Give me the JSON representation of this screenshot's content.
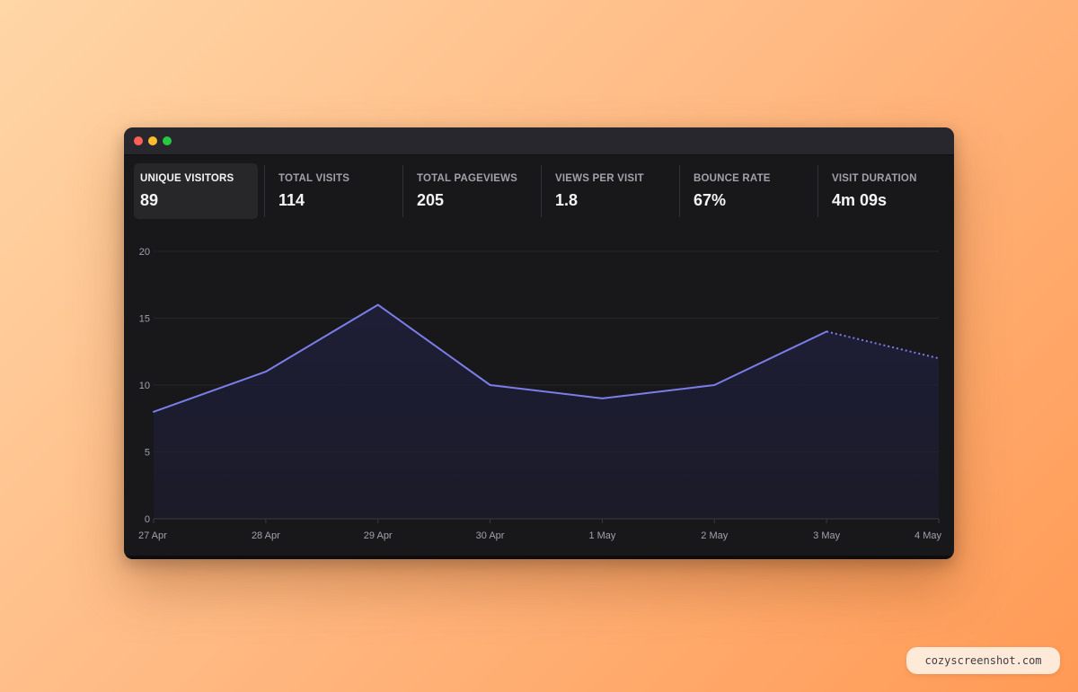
{
  "window": {
    "traffic_lights": [
      "close",
      "minimize",
      "zoom"
    ]
  },
  "stats": [
    {
      "label": "UNIQUE VISITORS",
      "value": "89",
      "active": true
    },
    {
      "label": "TOTAL VISITS",
      "value": "114",
      "active": false
    },
    {
      "label": "TOTAL PAGEVIEWS",
      "value": "205",
      "active": false
    },
    {
      "label": "VIEWS PER VISIT",
      "value": "1.8",
      "active": false
    },
    {
      "label": "BOUNCE RATE",
      "value": "67%",
      "active": false
    },
    {
      "label": "VISIT DURATION",
      "value": "4m 09s",
      "active": false
    }
  ],
  "chart_data": {
    "type": "area",
    "title": "",
    "xlabel": "",
    "ylabel": "",
    "categories": [
      "27 Apr",
      "28 Apr",
      "29 Apr",
      "30 Apr",
      "1 May",
      "2 May",
      "3 May",
      "4 May"
    ],
    "series": [
      {
        "values": [
          8,
          11,
          16,
          10,
          9,
          10,
          14,
          12
        ]
      }
    ],
    "dashed_from_index": 6,
    "ylim": [
      0,
      20
    ],
    "yticks": [
      0,
      5,
      10,
      15,
      20
    ],
    "grid": true,
    "line_color": "#7b7ee8",
    "fill_color": "#1e1e38"
  },
  "watermark": {
    "text": "cozyscreenshot.com"
  }
}
